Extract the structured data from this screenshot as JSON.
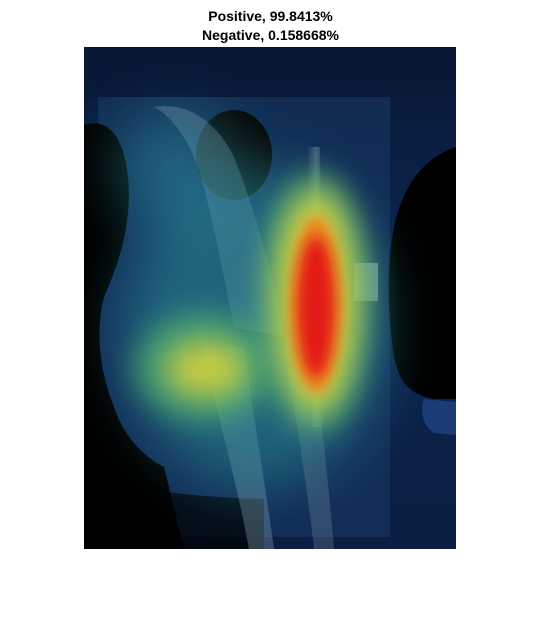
{
  "title": {
    "line1": "Positive, 99.8413%",
    "line2": "Negative, 0.158668%"
  },
  "image": {
    "kind": "x-ray heatmap overlay",
    "colormap": [
      "#0b1f4a",
      "#1f6f8f",
      "#3fb7a3",
      "#d9d33a",
      "#e8621e",
      "#e01616"
    ],
    "background": "#0b1a33"
  }
}
